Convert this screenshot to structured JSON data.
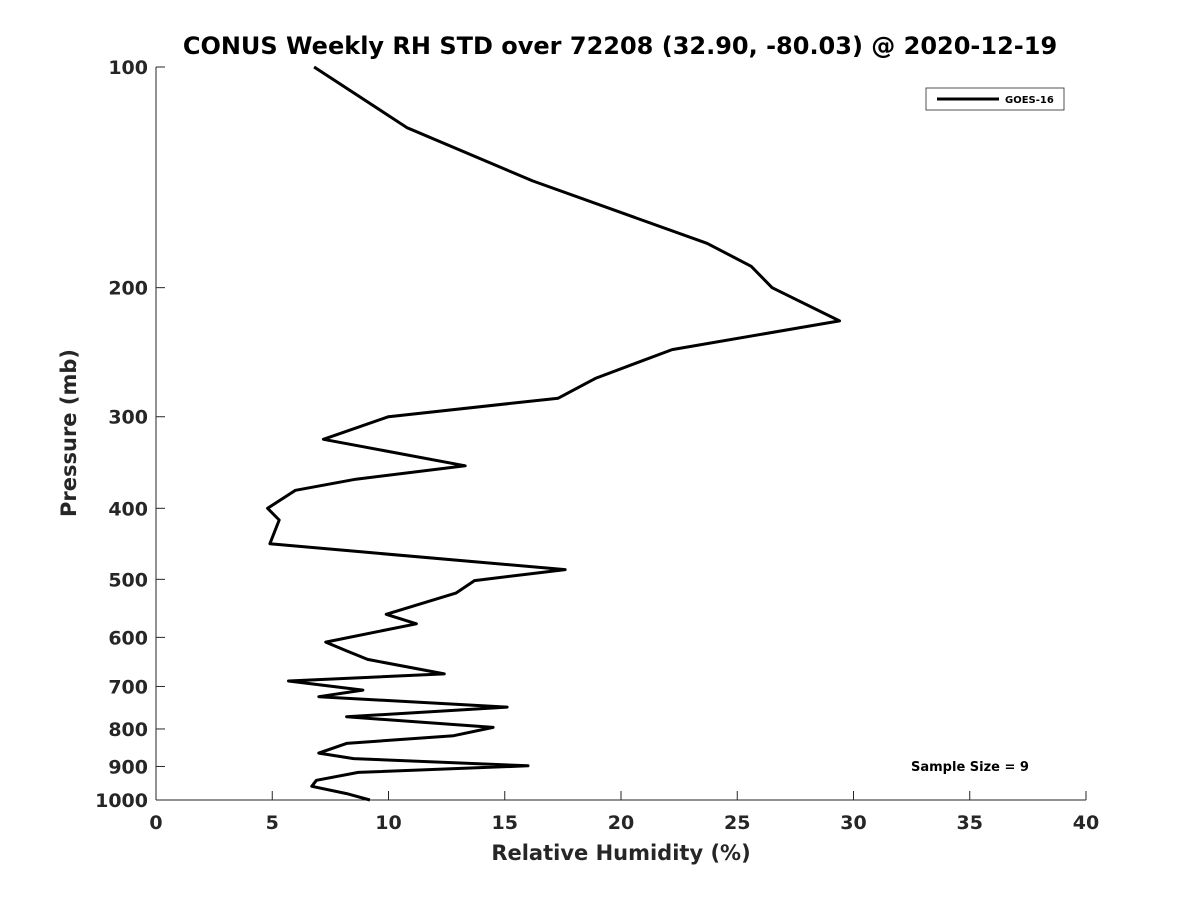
{
  "chart_data": {
    "type": "line",
    "title": "CONUS Weekly RH STD over 72208 (32.90, -80.03) @ 2020-12-19",
    "xlabel": "Relative Humidity (%)",
    "ylabel": "Pressure (mb)",
    "xlim": [
      0,
      40
    ],
    "ylim": [
      100,
      1000
    ],
    "yscale": "log",
    "yreversed": true,
    "xticks": [
      0,
      5,
      10,
      15,
      20,
      25,
      30,
      35,
      40
    ],
    "yticks": [
      100,
      200,
      300,
      400,
      500,
      600,
      700,
      800,
      900,
      1000
    ],
    "grid": false,
    "legend_position": "top-right",
    "annotation": "Sample Size = 9",
    "series": [
      {
        "name": "GOES-16",
        "color": "#000000",
        "x": [
          6.8,
          10.8,
          16.2,
          23.7,
          25.6,
          26.5,
          29.4,
          22.2,
          18.9,
          17.3,
          10.0,
          7.2,
          13.3,
          8.6,
          6.0,
          4.8,
          5.3,
          4.9,
          9.3,
          17.6,
          13.7,
          12.9,
          9.9,
          11.2,
          7.3,
          8.2,
          9.1,
          12.4,
          5.7,
          8.9,
          7.0,
          15.1,
          8.2,
          14.5,
          12.8,
          8.2,
          7.0,
          8.5,
          16.0,
          8.7,
          6.9,
          6.7,
          8.2,
          9.2
        ],
        "y": [
          100,
          121,
          143,
          174,
          187,
          200,
          222,
          243,
          266,
          283,
          300,
          322,
          350,
          365,
          378,
          400,
          415,
          447,
          460,
          485,
          502,
          522,
          558,
          575,
          609,
          626,
          643,
          673,
          688,
          708,
          723,
          747,
          770,
          796,
          817,
          837,
          863,
          878,
          898,
          917,
          940,
          958,
          980,
          1000
        ]
      }
    ]
  }
}
